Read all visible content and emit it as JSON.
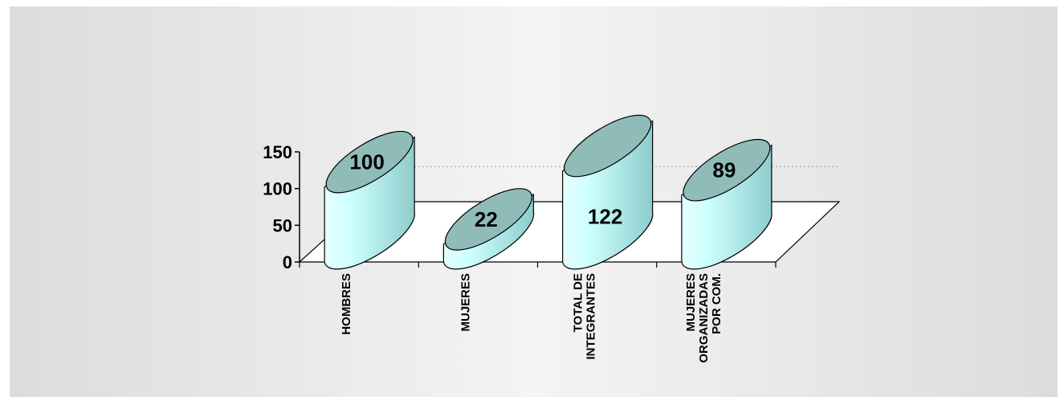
{
  "chart_data": {
    "type": "bar",
    "title": "",
    "xlabel": "",
    "ylabel": "",
    "categories": [
      "HOMBRES",
      "MUJERES",
      "TOTAL DE INTEGRANTES",
      "MUJERES ORGANIZADAS POR COM."
    ],
    "category_lines": [
      [
        "HOMBRES"
      ],
      [
        "MUJERES"
      ],
      [
        "TOTAL DE",
        "INTEGRANTES"
      ],
      [
        "MUJERES",
        "ORGANIZADAS",
        "POR COM."
      ]
    ],
    "values": [
      100,
      22,
      122,
      89
    ],
    "data_labels": [
      "100",
      "22",
      "122",
      "89"
    ],
    "ylim": [
      0,
      150
    ],
    "yticks": [
      "0",
      "50",
      "100",
      "150"
    ],
    "grid": true,
    "legend": "none",
    "colors": {
      "cylinder_light": "#ccffff",
      "cylinder_dark": "#8ecccc",
      "cylinder_top": "#8fbcb9",
      "outline": "#000000",
      "background": "#e2e2e2",
      "floor": "#ffffff"
    }
  }
}
